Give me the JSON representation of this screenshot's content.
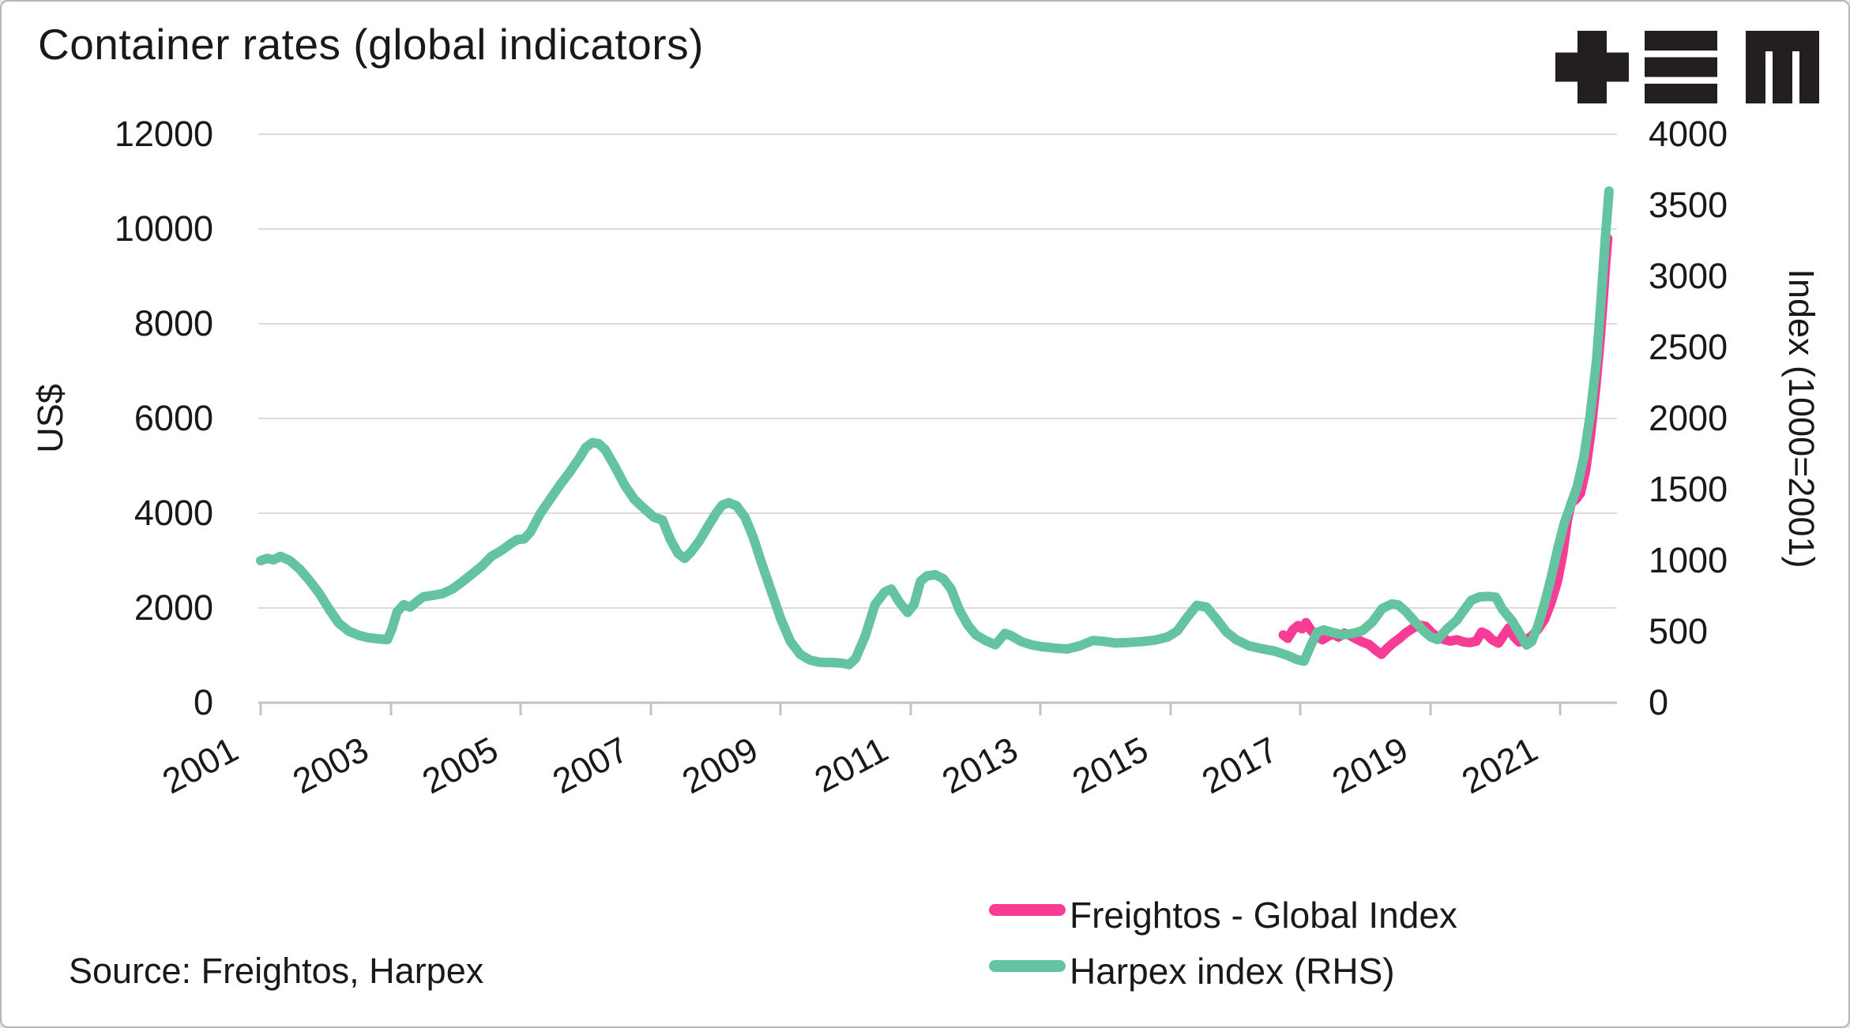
{
  "meta": {
    "title": "Container rates (global indicators)",
    "source": "Source: Freightos, Harpex",
    "logo": "plus-bars-m-logo"
  },
  "chart_data": {
    "type": "line",
    "title": "Container rates (global indicators)",
    "grid": true,
    "background": "#ffffff",
    "left_axis": {
      "label": "US$",
      "range": [
        0,
        12000
      ],
      "ticks": [
        12000,
        10000,
        8000,
        6000,
        4000,
        2000,
        0
      ]
    },
    "right_axis": {
      "label": "Index (1000=2001)",
      "range": [
        0,
        4000
      ],
      "ticks": [
        4000,
        3500,
        3000,
        2500,
        2000,
        1500,
        1000,
        500,
        0
      ]
    },
    "x_axis": {
      "range": [
        2001,
        2021.9
      ],
      "ticks": [
        2001,
        2003,
        2005,
        2007,
        2009,
        2011,
        2013,
        2015,
        2017,
        2019,
        2021
      ]
    },
    "legend": {
      "position": "bottom-right",
      "entries": [
        {
          "label": "Freightos - Global Index",
          "color": "#F83C96"
        },
        {
          "label": "Harpex index (RHS)",
          "color": "#64C4A2"
        }
      ]
    },
    "series": [
      {
        "name": "Freightos - Global Index",
        "axis": "left",
        "color": "#F83C96",
        "points": [
          [
            2016.73,
            1430
          ],
          [
            2016.8,
            1360
          ],
          [
            2016.88,
            1540
          ],
          [
            2016.96,
            1630
          ],
          [
            2017.02,
            1560
          ],
          [
            2017.08,
            1690
          ],
          [
            2017.16,
            1520
          ],
          [
            2017.25,
            1400
          ],
          [
            2017.33,
            1330
          ],
          [
            2017.42,
            1405
          ],
          [
            2017.5,
            1445
          ],
          [
            2017.58,
            1385
          ],
          [
            2017.67,
            1465
          ],
          [
            2017.76,
            1415
          ],
          [
            2017.86,
            1340
          ],
          [
            2017.95,
            1280
          ],
          [
            2018.05,
            1230
          ],
          [
            2018.15,
            1110
          ],
          [
            2018.24,
            1020
          ],
          [
            2018.33,
            1150
          ],
          [
            2018.42,
            1260
          ],
          [
            2018.52,
            1360
          ],
          [
            2018.62,
            1480
          ],
          [
            2018.72,
            1570
          ],
          [
            2018.82,
            1640
          ],
          [
            2018.92,
            1610
          ],
          [
            2019.02,
            1470
          ],
          [
            2019.1,
            1390
          ],
          [
            2019.2,
            1335
          ],
          [
            2019.3,
            1300
          ],
          [
            2019.4,
            1330
          ],
          [
            2019.5,
            1285
          ],
          [
            2019.6,
            1268
          ],
          [
            2019.7,
            1300
          ],
          [
            2019.78,
            1490
          ],
          [
            2019.86,
            1440
          ],
          [
            2019.95,
            1320
          ],
          [
            2020.04,
            1258
          ],
          [
            2020.12,
            1420
          ],
          [
            2020.2,
            1580
          ],
          [
            2020.28,
            1390
          ],
          [
            2020.36,
            1282
          ],
          [
            2020.45,
            1315
          ],
          [
            2020.55,
            1405
          ],
          [
            2020.65,
            1555
          ],
          [
            2020.75,
            1760
          ],
          [
            2020.85,
            2120
          ],
          [
            2020.95,
            2580
          ],
          [
            2021.03,
            3150
          ],
          [
            2021.1,
            3850
          ],
          [
            2021.16,
            4220
          ],
          [
            2021.23,
            4290
          ],
          [
            2021.3,
            4420
          ],
          [
            2021.38,
            4900
          ],
          [
            2021.46,
            5700
          ],
          [
            2021.54,
            6700
          ],
          [
            2021.6,
            7600
          ],
          [
            2021.65,
            8500
          ],
          [
            2021.69,
            9300
          ],
          [
            2021.72,
            9800
          ]
        ]
      },
      {
        "name": "Harpex index (RHS)",
        "axis": "right",
        "color": "#64C4A2",
        "points": [
          [
            2001.0,
            1000
          ],
          [
            2001.1,
            1015
          ],
          [
            2001.2,
            1005
          ],
          [
            2001.3,
            1030
          ],
          [
            2001.45,
            1000
          ],
          [
            2001.6,
            940
          ],
          [
            2001.75,
            860
          ],
          [
            2001.9,
            770
          ],
          [
            2002.05,
            660
          ],
          [
            2002.2,
            560
          ],
          [
            2002.35,
            505
          ],
          [
            2002.5,
            475
          ],
          [
            2002.65,
            458
          ],
          [
            2002.8,
            450
          ],
          [
            2002.95,
            444
          ],
          [
            2003.02,
            520
          ],
          [
            2003.1,
            640
          ],
          [
            2003.2,
            690
          ],
          [
            2003.3,
            672
          ],
          [
            2003.4,
            710
          ],
          [
            2003.5,
            745
          ],
          [
            2003.65,
            755
          ],
          [
            2003.8,
            768
          ],
          [
            2003.95,
            800
          ],
          [
            2004.1,
            850
          ],
          [
            2004.25,
            905
          ],
          [
            2004.4,
            960
          ],
          [
            2004.55,
            1030
          ],
          [
            2004.7,
            1070
          ],
          [
            2004.85,
            1120
          ],
          [
            2004.95,
            1148
          ],
          [
            2005.05,
            1152
          ],
          [
            2005.15,
            1200
          ],
          [
            2005.3,
            1330
          ],
          [
            2005.45,
            1430
          ],
          [
            2005.6,
            1530
          ],
          [
            2005.75,
            1620
          ],
          [
            2005.9,
            1720
          ],
          [
            2006.0,
            1795
          ],
          [
            2006.1,
            1830
          ],
          [
            2006.2,
            1822
          ],
          [
            2006.3,
            1780
          ],
          [
            2006.45,
            1660
          ],
          [
            2006.6,
            1530
          ],
          [
            2006.75,
            1430
          ],
          [
            2006.9,
            1365
          ],
          [
            2007.05,
            1305
          ],
          [
            2007.18,
            1285
          ],
          [
            2007.3,
            1150
          ],
          [
            2007.42,
            1050
          ],
          [
            2007.52,
            1015
          ],
          [
            2007.62,
            1060
          ],
          [
            2007.75,
            1140
          ],
          [
            2007.88,
            1240
          ],
          [
            2008.0,
            1330
          ],
          [
            2008.1,
            1390
          ],
          [
            2008.2,
            1408
          ],
          [
            2008.32,
            1385
          ],
          [
            2008.45,
            1305
          ],
          [
            2008.58,
            1160
          ],
          [
            2008.7,
            990
          ],
          [
            2008.85,
            790
          ],
          [
            2009.0,
            590
          ],
          [
            2009.15,
            430
          ],
          [
            2009.3,
            340
          ],
          [
            2009.45,
            300
          ],
          [
            2009.6,
            285
          ],
          [
            2009.8,
            283
          ],
          [
            2009.95,
            278
          ],
          [
            2010.05,
            268
          ],
          [
            2010.15,
            310
          ],
          [
            2010.3,
            470
          ],
          [
            2010.45,
            690
          ],
          [
            2010.6,
            780
          ],
          [
            2010.7,
            800
          ],
          [
            2010.82,
            710
          ],
          [
            2010.95,
            635
          ],
          [
            2011.05,
            690
          ],
          [
            2011.15,
            855
          ],
          [
            2011.25,
            893
          ],
          [
            2011.38,
            900
          ],
          [
            2011.5,
            872
          ],
          [
            2011.62,
            800
          ],
          [
            2011.75,
            650
          ],
          [
            2011.88,
            545
          ],
          [
            2012.0,
            478
          ],
          [
            2012.15,
            438
          ],
          [
            2012.3,
            408
          ],
          [
            2012.45,
            488
          ],
          [
            2012.55,
            470
          ],
          [
            2012.7,
            430
          ],
          [
            2012.85,
            408
          ],
          [
            2013.0,
            395
          ],
          [
            2013.2,
            385
          ],
          [
            2013.4,
            378
          ],
          [
            2013.6,
            400
          ],
          [
            2013.8,
            438
          ],
          [
            2013.95,
            432
          ],
          [
            2014.15,
            420
          ],
          [
            2014.35,
            424
          ],
          [
            2014.55,
            430
          ],
          [
            2014.75,
            440
          ],
          [
            2014.95,
            462
          ],
          [
            2015.1,
            505
          ],
          [
            2015.25,
            600
          ],
          [
            2015.4,
            685
          ],
          [
            2015.55,
            672
          ],
          [
            2015.7,
            590
          ],
          [
            2015.85,
            500
          ],
          [
            2016.0,
            445
          ],
          [
            2016.2,
            400
          ],
          [
            2016.4,
            380
          ],
          [
            2016.6,
            362
          ],
          [
            2016.8,
            332
          ],
          [
            2016.95,
            302
          ],
          [
            2017.05,
            292
          ],
          [
            2017.15,
            400
          ],
          [
            2017.25,
            495
          ],
          [
            2017.35,
            512
          ],
          [
            2017.5,
            492
          ],
          [
            2017.65,
            478
          ],
          [
            2017.8,
            488
          ],
          [
            2017.95,
            508
          ],
          [
            2018.1,
            568
          ],
          [
            2018.25,
            662
          ],
          [
            2018.4,
            695
          ],
          [
            2018.5,
            688
          ],
          [
            2018.62,
            640
          ],
          [
            2018.75,
            572
          ],
          [
            2018.9,
            500
          ],
          [
            2019.0,
            462
          ],
          [
            2019.1,
            444
          ],
          [
            2019.25,
            520
          ],
          [
            2019.4,
            580
          ],
          [
            2019.5,
            645
          ],
          [
            2019.62,
            720
          ],
          [
            2019.75,
            745
          ],
          [
            2019.9,
            748
          ],
          [
            2020.0,
            742
          ],
          [
            2020.1,
            658
          ],
          [
            2020.25,
            575
          ],
          [
            2020.35,
            500
          ],
          [
            2020.47,
            406
          ],
          [
            2020.55,
            430
          ],
          [
            2020.65,
            545
          ],
          [
            2020.75,
            700
          ],
          [
            2020.85,
            880
          ],
          [
            2020.95,
            1080
          ],
          [
            2021.05,
            1260
          ],
          [
            2021.15,
            1390
          ],
          [
            2021.25,
            1520
          ],
          [
            2021.35,
            1720
          ],
          [
            2021.45,
            2020
          ],
          [
            2021.55,
            2420
          ],
          [
            2021.62,
            2850
          ],
          [
            2021.68,
            3250
          ],
          [
            2021.74,
            3600
          ]
        ]
      }
    ],
    "style": {
      "grid_color": "#dcdcdc",
      "spine_color": "#c2c2c2",
      "text_color": "#191919",
      "line_width": 12
    }
  }
}
